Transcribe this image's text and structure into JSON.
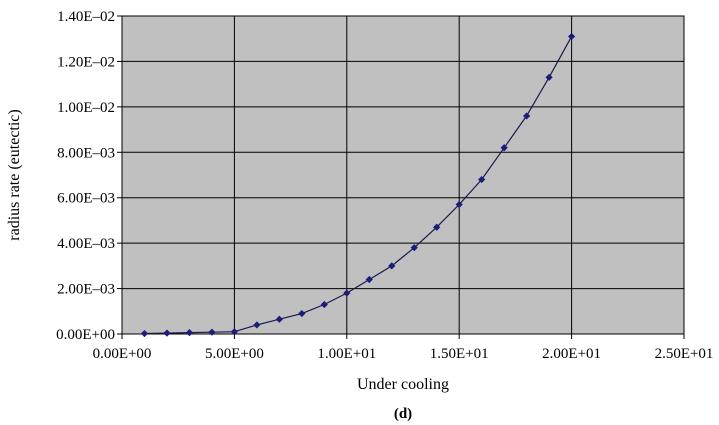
{
  "chart_data": {
    "type": "line",
    "title": "",
    "xlabel": "Under cooling",
    "ylabel": "radius rate (eutectic)",
    "caption": "(d)",
    "xlim": [
      0,
      25
    ],
    "ylim": [
      0,
      0.014
    ],
    "grid": true,
    "x_ticks": [
      "0.00E+00",
      "5.00E+00",
      "1.00E+01",
      "1.50E+01",
      "2.00E+01",
      "2.50E+01"
    ],
    "y_ticks": [
      "0.00E+00",
      "2.00E–03",
      "4.00E–03",
      "6.00E–03",
      "8.00E–03",
      "1.00E–02",
      "1.20E–02",
      "1.40E–02"
    ],
    "colors": {
      "plot_bg": "#c0c0c0",
      "line": "#1a1a4a",
      "marker": "#1c1c7a",
      "grid": "#000000"
    },
    "series": [
      {
        "x": [
          1,
          2,
          3,
          4,
          5,
          6,
          7,
          8,
          9,
          10,
          11,
          12,
          13,
          14,
          15,
          16,
          17,
          18,
          19,
          20
        ],
        "values": [
          2e-05,
          4e-05,
          6e-05,
          8e-05,
          0.0001,
          0.0004,
          0.00065,
          0.0009,
          0.0013,
          0.0018,
          0.0024,
          0.003,
          0.0038,
          0.0047,
          0.0057,
          0.0068,
          0.0082,
          0.0096,
          0.0113,
          0.0131
        ]
      }
    ]
  }
}
